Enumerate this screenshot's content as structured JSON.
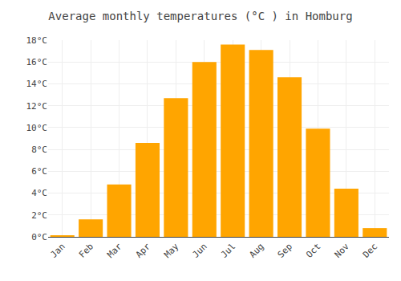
{
  "chart_data": {
    "type": "bar",
    "title": "Average monthly temperatures (°C ) in Homburg",
    "categories": [
      "Jan",
      "Feb",
      "Mar",
      "Apr",
      "May",
      "Jun",
      "Jul",
      "Aug",
      "Sep",
      "Oct",
      "Nov",
      "Dec"
    ],
    "values": [
      0.1,
      1.6,
      4.8,
      8.6,
      12.7,
      16.0,
      17.6,
      17.1,
      14.6,
      9.9,
      4.4,
      0.8
    ],
    "color": "#FFA500",
    "ylim": [
      0,
      18
    ],
    "yticks": [
      {
        "value": 0,
        "label": "0°C"
      },
      {
        "value": 2,
        "label": "2°C"
      },
      {
        "value": 4,
        "label": "4°C"
      },
      {
        "value": 6,
        "label": "6°C"
      },
      {
        "value": 8,
        "label": "8°C"
      },
      {
        "value": 10,
        "label": "10°C"
      },
      {
        "value": 12,
        "label": "12°C"
      },
      {
        "value": 14,
        "label": "14°C"
      },
      {
        "value": 16,
        "label": "16°C"
      },
      {
        "value": 18,
        "label": "18°C"
      }
    ],
    "grid": true
  }
}
